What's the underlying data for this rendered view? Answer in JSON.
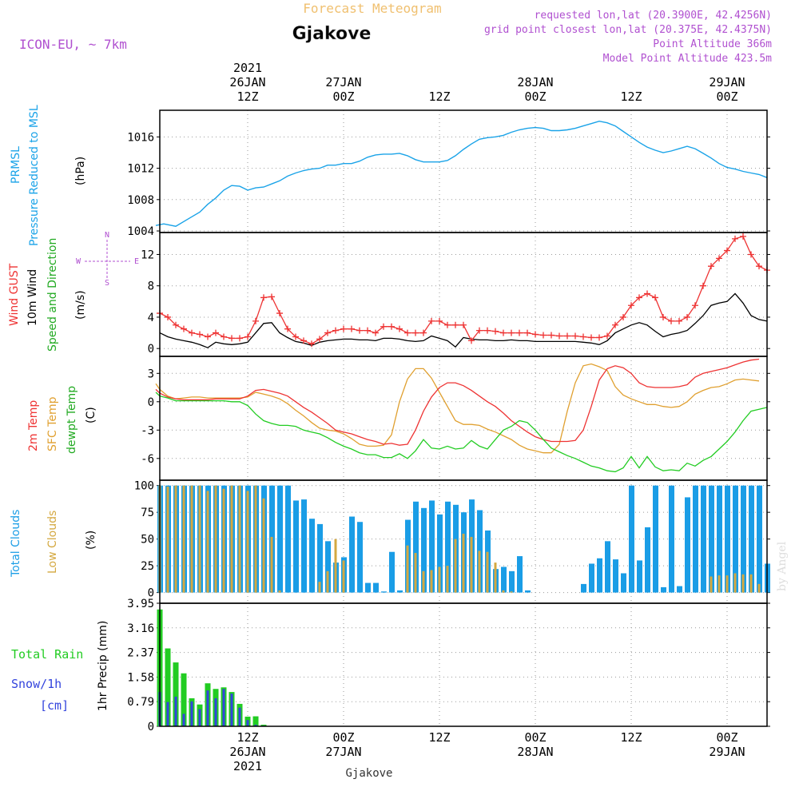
{
  "header": {
    "forecast_title": "Forecast Meteogram",
    "location": "Gjakove",
    "model": "ICON-EU, ~ 7km",
    "requested": "requested lon,lat (20.3900E, 42.4256N)",
    "grid_point": "grid point closest lon,lat (20.375E, 42.4375N)",
    "point_altitude": "Point Altitude 366m",
    "model_altitude": "Model Point Altitude 423.5m"
  },
  "top_time_labels": [
    {
      "t": 12,
      "lines": [
        "2021",
        "26JAN",
        "12Z"
      ]
    },
    {
      "t": 24,
      "lines": [
        "27JAN",
        "00Z"
      ]
    },
    {
      "t": 36,
      "lines": [
        "12Z"
      ]
    },
    {
      "t": 48,
      "lines": [
        "28JAN",
        "00Z"
      ]
    },
    {
      "t": 60,
      "lines": [
        "12Z"
      ]
    },
    {
      "t": 72,
      "lines": [
        "29JAN",
        "00Z"
      ]
    }
  ],
  "bottom_time_labels": [
    {
      "t": 12,
      "lines": [
        "12Z",
        "26JAN",
        "2021"
      ]
    },
    {
      "t": 24,
      "lines": [
        "00Z",
        "27JAN"
      ]
    },
    {
      "t": 36,
      "lines": [
        "12Z"
      ]
    },
    {
      "t": 48,
      "lines": [
        "00Z",
        "28JAN"
      ]
    },
    {
      "t": 60,
      "lines": [
        "12Z"
      ]
    },
    {
      "t": 72,
      "lines": [
        "00Z",
        "29JAN"
      ]
    }
  ],
  "footer": {
    "station": "Gjakove"
  },
  "watermark": "by Angel",
  "colors": {
    "pressure": "#1aa3e8",
    "gust": "#ee3333",
    "wind": "#000000",
    "temp": "#ee3333",
    "sfc": "#e0a030",
    "dewpt": "#22cc22",
    "total_cloud": "#1a9de6",
    "low_cloud": "#d4a840",
    "rain": "#22cc22",
    "snow": "#3344dd",
    "purple": "#b050d0",
    "title_orange": "#f0c070"
  },
  "panels": {
    "pressure": {
      "ylabel_1": "PRMSL",
      "ylabel_2": "Pressure Reduced to MSL",
      "unit": "(hPa)",
      "ticks": [
        "1004",
        "1008",
        "1012",
        "1016"
      ]
    },
    "wind": {
      "ylabel_gust": "Wind GUST",
      "ylabel_wind": "10m Wind",
      "ylabel_dir": "Speed and Direction",
      "unit": "(m/s)",
      "ticks": [
        "0",
        "4",
        "8",
        "12"
      ],
      "compass": {
        "n": "N",
        "s": "S",
        "e": "E",
        "w": "W"
      }
    },
    "temp": {
      "ylabel_t": "2m Temp",
      "ylabel_sfc": "SFC Temp",
      "ylabel_d": "dewpt Temp",
      "unit": "(C)",
      "ticks": [
        "-6",
        "-3",
        "0",
        "3"
      ]
    },
    "clouds": {
      "ylabel_total": "Total Clouds",
      "ylabel_low": "Low Clouds",
      "unit": "(%)",
      "ticks": [
        "0",
        "25",
        "50",
        "75",
        "100"
      ]
    },
    "precip": {
      "ylabel_total": "Total  Rain",
      "ylabel_snow": "Snow/1h",
      "ylabel_snow_unit": "[cm]",
      "ylabel_unit": "1hr Precip (mm)",
      "ticks": [
        "0",
        "0.79",
        "1.58",
        "2.37",
        "3.16",
        "3.95"
      ]
    }
  },
  "chart_data": {
    "type": "line",
    "x_unit": "forecast hour from 2021-01-26 00Z",
    "xlim": [
      1,
      77
    ],
    "pressure": {
      "ylim": [
        1003.8,
        1019.4
      ],
      "x": [
        0.5,
        1.5,
        3,
        4.5,
        6,
        7,
        8,
        9,
        10,
        11,
        12,
        13,
        14,
        15,
        16,
        17,
        18,
        19,
        20,
        21,
        22,
        23,
        24,
        25,
        26,
        27,
        28,
        29,
        30,
        31,
        32,
        33,
        34,
        35,
        36,
        37,
        38,
        39,
        40,
        41,
        42,
        43,
        44,
        45,
        46,
        47,
        48,
        49,
        50,
        51,
        52,
        53,
        54,
        55,
        56,
        57,
        58,
        59,
        60,
        61,
        62,
        63,
        64,
        65,
        66,
        67,
        68,
        69,
        70,
        71,
        72,
        73,
        74,
        75,
        76,
        77
      ],
      "values": [
        1004.7,
        1004.9,
        1004.6,
        1005.5,
        1006.4,
        1007.4,
        1008.2,
        1009.2,
        1009.8,
        1009.7,
        1009.2,
        1009.5,
        1009.6,
        1010.0,
        1010.4,
        1011.0,
        1011.4,
        1011.7,
        1011.9,
        1012.0,
        1012.4,
        1012.4,
        1012.6,
        1012.6,
        1012.9,
        1013.4,
        1013.7,
        1013.8,
        1013.8,
        1013.9,
        1013.6,
        1013.1,
        1012.8,
        1012.8,
        1012.8,
        1013.0,
        1013.6,
        1014.4,
        1015.1,
        1015.7,
        1015.9,
        1016.0,
        1016.2,
        1016.6,
        1016.9,
        1017.1,
        1017.2,
        1017.1,
        1016.8,
        1016.8,
        1016.9,
        1017.1,
        1017.4,
        1017.7,
        1018.0,
        1017.8,
        1017.4,
        1016.7,
        1016.0,
        1015.3,
        1014.7,
        1014.3,
        1014.0,
        1014.2,
        1014.5,
        1014.8,
        1014.5,
        1013.9,
        1013.3,
        1012.6,
        1012.1,
        1011.9,
        1011.6,
        1011.4,
        1011.2,
        1010.8
      ]
    },
    "gust": {
      "ylim": [
        -1,
        14.8
      ],
      "x": [
        1,
        2,
        3,
        4,
        5,
        6,
        7,
        8,
        9,
        10,
        11,
        12,
        13,
        14,
        15,
        16,
        17,
        18,
        19,
        20,
        21,
        22,
        23,
        24,
        25,
        26,
        27,
        28,
        29,
        30,
        31,
        32,
        33,
        34,
        35,
        36,
        37,
        38,
        39,
        40,
        41,
        42,
        43,
        44,
        45,
        46,
        47,
        48,
        49,
        50,
        51,
        52,
        53,
        54,
        55,
        56,
        57,
        58,
        59,
        60,
        61,
        62,
        63,
        64,
        65,
        66,
        67,
        68,
        69,
        70,
        71,
        72,
        73,
        74,
        75,
        76,
        77
      ],
      "values": [
        4.5,
        4.0,
        3.0,
        2.5,
        2.0,
        1.8,
        1.5,
        2.0,
        1.5,
        1.3,
        1.3,
        1.5,
        3.5,
        6.5,
        6.6,
        4.5,
        2.5,
        1.5,
        1.0,
        0.6,
        1.2,
        2.0,
        2.3,
        2.5,
        2.5,
        2.3,
        2.3,
        2.0,
        2.8,
        2.8,
        2.5,
        2.0,
        2.0,
        2.0,
        3.5,
        3.5,
        3.0,
        3.0,
        3.0,
        1.0,
        2.3,
        2.3,
        2.2,
        2.0,
        2.0,
        2.0,
        2.0,
        1.8,
        1.7,
        1.7,
        1.6,
        1.6,
        1.6,
        1.5,
        1.4,
        1.4,
        1.6,
        3.0,
        4.0,
        5.5,
        6.5,
        7.0,
        6.5,
        4.0,
        3.5,
        3.5,
        4.0,
        5.5,
        8.0,
        10.5,
        11.5,
        12.5,
        14.0,
        14.3,
        12.0,
        10.5,
        10.0
      ]
    },
    "wind": {
      "x": [
        1,
        2,
        3,
        4,
        5,
        6,
        7,
        8,
        9,
        10,
        11,
        12,
        13,
        14,
        15,
        16,
        17,
        18,
        19,
        20,
        21,
        22,
        23,
        24,
        25,
        26,
        27,
        28,
        29,
        30,
        31,
        32,
        33,
        34,
        35,
        36,
        37,
        38,
        39,
        40,
        41,
        42,
        43,
        44,
        45,
        46,
        47,
        48,
        49,
        50,
        51,
        52,
        53,
        54,
        55,
        56,
        57,
        58,
        59,
        60,
        61,
        62,
        63,
        64,
        65,
        66,
        67,
        68,
        69,
        70,
        71,
        72,
        73,
        74,
        75,
        76,
        77
      ],
      "values": [
        2.0,
        1.5,
        1.2,
        1.0,
        0.8,
        0.5,
        0.1,
        0.8,
        0.6,
        0.5,
        0.6,
        0.8,
        2.0,
        3.2,
        3.3,
        2.0,
        1.4,
        0.9,
        0.7,
        0.4,
        0.8,
        1.0,
        1.1,
        1.2,
        1.2,
        1.1,
        1.1,
        1.0,
        1.3,
        1.3,
        1.2,
        1.0,
        0.9,
        1.0,
        1.6,
        1.3,
        1.0,
        0.2,
        1.4,
        1.2,
        1.1,
        1.1,
        1.0,
        1.0,
        1.1,
        1.0,
        1.0,
        0.9,
        0.9,
        0.9,
        0.9,
        0.9,
        0.9,
        0.8,
        0.7,
        0.5,
        1.0,
        2.0,
        2.5,
        3.0,
        3.3,
        3.0,
        2.2,
        1.5,
        1.8,
        2.0,
        2.3,
        3.2,
        4.2,
        5.5,
        5.8,
        6.0,
        7.0,
        5.8,
        4.2,
        3.7,
        3.5
      ]
    },
    "temp": {
      "ylim": [
        -8.3,
        4.8
      ],
      "x": [
        0.5,
        1,
        2,
        3,
        4,
        5,
        6,
        7,
        8,
        9,
        10,
        11,
        12,
        13,
        14,
        15,
        16,
        17,
        18,
        19,
        20,
        21,
        22,
        23,
        24,
        25,
        26,
        27,
        28,
        29,
        30,
        31,
        32,
        33,
        34,
        35,
        36,
        37,
        38,
        39,
        40,
        41,
        42,
        43,
        44,
        45,
        46,
        47,
        48,
        49,
        50,
        51,
        52,
        53,
        54,
        55,
        56,
        57,
        58,
        59,
        60,
        61,
        62,
        63,
        64,
        65,
        66,
        67,
        68,
        69,
        70,
        71,
        72,
        73,
        74,
        75,
        76,
        77
      ],
      "t2m": [
        1.3,
        0.9,
        0.5,
        0.3,
        0.2,
        0.2,
        0.2,
        0.2,
        0.3,
        0.3,
        0.3,
        0.3,
        0.6,
        1.2,
        1.3,
        1.1,
        0.9,
        0.6,
        0.0,
        -0.6,
        -1.1,
        -1.7,
        -2.3,
        -3.0,
        -3.2,
        -3.4,
        -3.7,
        -4.0,
        -4.2,
        -4.5,
        -4.4,
        -4.6,
        -4.5,
        -3.0,
        -1.0,
        0.5,
        1.5,
        2.0,
        2.0,
        1.7,
        1.2,
        0.6,
        0.0,
        -0.5,
        -1.2,
        -2.0,
        -2.6,
        -3.2,
        -3.7,
        -4.0,
        -4.2,
        -4.2,
        -4.2,
        -4.1,
        -3.0,
        -0.5,
        2.3,
        3.5,
        3.8,
        3.6,
        3.0,
        2.0,
        1.6,
        1.5,
        1.5,
        1.5,
        1.6,
        1.8,
        2.6,
        3.0,
        3.2,
        3.4,
        3.6,
        3.9,
        4.2,
        4.4,
        4.5
      ],
      "sfc": [
        1.9,
        1.3,
        0.6,
        0.3,
        0.4,
        0.5,
        0.5,
        0.4,
        0.4,
        0.4,
        0.4,
        0.4,
        0.5,
        1.0,
        0.8,
        0.6,
        0.3,
        -0.2,
        -0.9,
        -1.5,
        -2.2,
        -2.8,
        -3.0,
        -3.1,
        -3.4,
        -3.9,
        -4.5,
        -4.7,
        -4.7,
        -4.6,
        -3.5,
        0.0,
        2.4,
        3.5,
        3.5,
        2.5,
        1.0,
        -0.5,
        -2.0,
        -2.4,
        -2.4,
        -2.5,
        -2.9,
        -3.2,
        -3.6,
        -4.0,
        -4.6,
        -5.0,
        -5.2,
        -5.4,
        -5.4,
        -4.5,
        -1.0,
        2.0,
        3.8,
        4.0,
        3.7,
        3.3,
        1.6,
        0.7,
        0.3,
        0.0,
        -0.3,
        -0.3,
        -0.5,
        -0.6,
        -0.5,
        0.0,
        0.8,
        1.2,
        1.5,
        1.6,
        1.9,
        2.3,
        2.4,
        2.3,
        2.2
      ],
      "dewpt": [
        1.0,
        0.6,
        0.4,
        0.1,
        0.1,
        0.1,
        0.1,
        0.1,
        0.1,
        0.1,
        0.0,
        0.0,
        -0.4,
        -1.3,
        -2.0,
        -2.3,
        -2.5,
        -2.5,
        -2.6,
        -3.0,
        -3.2,
        -3.4,
        -3.8,
        -4.3,
        -4.7,
        -5.0,
        -5.4,
        -5.6,
        -5.6,
        -5.9,
        -5.9,
        -5.5,
        -6.0,
        -5.2,
        -4.0,
        -4.9,
        -5.0,
        -4.7,
        -5.0,
        -4.9,
        -4.1,
        -4.7,
        -5.0,
        -4.0,
        -3.0,
        -2.6,
        -2.0,
        -2.2,
        -3.0,
        -4.0,
        -4.9,
        -5.3,
        -5.7,
        -6.0,
        -6.4,
        -6.8,
        -7.0,
        -7.3,
        -7.4,
        -7.0,
        -5.8,
        -7.0,
        -5.8,
        -6.9,
        -7.3,
        -7.2,
        -7.3,
        -6.5,
        -6.8,
        -6.2,
        -5.8,
        -5.0,
        -4.2,
        -3.2,
        -2.0,
        -1.0,
        -0.8,
        -0.6
      ]
    },
    "clouds": {
      "ylim": [
        0,
        100
      ],
      "x": [
        1,
        2,
        3,
        4,
        5,
        6,
        7,
        8,
        9,
        10,
        11,
        12,
        13,
        14,
        15,
        16,
        17,
        18,
        19,
        20,
        21,
        22,
        23,
        24,
        25,
        26,
        27,
        28,
        29,
        30,
        31,
        32,
        33,
        34,
        35,
        36,
        37,
        38,
        39,
        40,
        41,
        42,
        43,
        44,
        45,
        46,
        47,
        48,
        49,
        50,
        51,
        52,
        53,
        54,
        55,
        56,
        57,
        58,
        59,
        60,
        61,
        62,
        63,
        64,
        65,
        66,
        67,
        68,
        69,
        70,
        71,
        72,
        73,
        74,
        75,
        76,
        77
      ],
      "total": [
        100,
        100,
        100,
        100,
        100,
        100,
        100,
        100,
        100,
        100,
        100,
        100,
        100,
        100,
        100,
        100,
        100,
        86,
        87,
        69,
        64,
        48,
        28,
        33,
        71,
        66,
        9,
        9,
        1,
        38,
        2,
        68,
        85,
        79,
        86,
        73,
        85,
        82,
        75,
        87,
        77,
        58,
        22,
        24,
        20,
        34,
        2,
        0,
        0,
        0,
        0,
        0,
        0,
        8,
        27,
        32,
        48,
        31,
        18,
        100,
        30,
        61,
        100,
        5,
        100,
        6,
        89,
        100,
        100,
        100,
        100,
        100,
        100,
        100,
        100,
        100,
        27
      ],
      "low": [
        100,
        99,
        100,
        100,
        100,
        100,
        95,
        100,
        97,
        100,
        100,
        95,
        100,
        88,
        52,
        2,
        0,
        0,
        0,
        0,
        10,
        20,
        50,
        30,
        0,
        0,
        0,
        0,
        0,
        0,
        0,
        44,
        37,
        20,
        21,
        24,
        25,
        50,
        55,
        52,
        39,
        38,
        28,
        2,
        1,
        0,
        0,
        0,
        0,
        0,
        0,
        0,
        0,
        0,
        0,
        0,
        0,
        0,
        0,
        0,
        0,
        0,
        0,
        0,
        0,
        0,
        0,
        0,
        0,
        15,
        16,
        16,
        18,
        17,
        17,
        8,
        0
      ]
    },
    "precip": {
      "ylim": [
        0,
        3.95
      ],
      "x": [
        1,
        2,
        3,
        4,
        5,
        6,
        7,
        8,
        9,
        10,
        11,
        12,
        13,
        14,
        15
      ],
      "rain": [
        3.75,
        2.5,
        2.05,
        1.7,
        0.9,
        0.7,
        1.38,
        1.2,
        1.25,
        1.1,
        0.72,
        0.31,
        0.32,
        0.05,
        0.01
      ],
      "snow": [
        1.1,
        0.78,
        0.95,
        0.4,
        0.8,
        0.55,
        1.15,
        0.9,
        1.2,
        1.05,
        0.6,
        0.2,
        0.05,
        0.02,
        0.01
      ]
    }
  }
}
